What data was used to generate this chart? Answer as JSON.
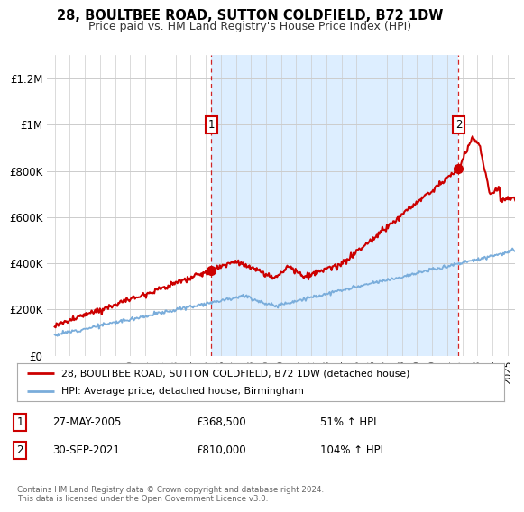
{
  "title": "28, BOULTBEE ROAD, SUTTON COLDFIELD, B72 1DW",
  "subtitle": "Price paid vs. HM Land Registry's House Price Index (HPI)",
  "ylabel_ticks": [
    "£0",
    "£200K",
    "£400K",
    "£600K",
    "£800K",
    "£1M",
    "£1.2M"
  ],
  "ytick_values": [
    0,
    200000,
    400000,
    600000,
    800000,
    1000000,
    1200000
  ],
  "ylim": [
    0,
    1300000
  ],
  "xlim_start": 1994.5,
  "xlim_end": 2025.5,
  "sale1_x": 2005.38,
  "sale1_y": 368500,
  "sale2_x": 2021.75,
  "sale2_y": 810000,
  "sale1_date": "27-MAY-2005",
  "sale1_price": "£368,500",
  "sale1_hpi": "51% ↑ HPI",
  "sale2_date": "30-SEP-2021",
  "sale2_price": "£810,000",
  "sale2_hpi": "104% ↑ HPI",
  "legend_line1": "28, BOULTBEE ROAD, SUTTON COLDFIELD, B72 1DW (detached house)",
  "legend_line2": "HPI: Average price, detached house, Birmingham",
  "footer": "Contains HM Land Registry data © Crown copyright and database right 2024.\nThis data is licensed under the Open Government Licence v3.0.",
  "house_color": "#cc0000",
  "hpi_color": "#7aaddb",
  "shade_color": "#ddeeff",
  "vline_color": "#cc0000",
  "background_color": "#ffffff",
  "grid_color": "#cccccc"
}
